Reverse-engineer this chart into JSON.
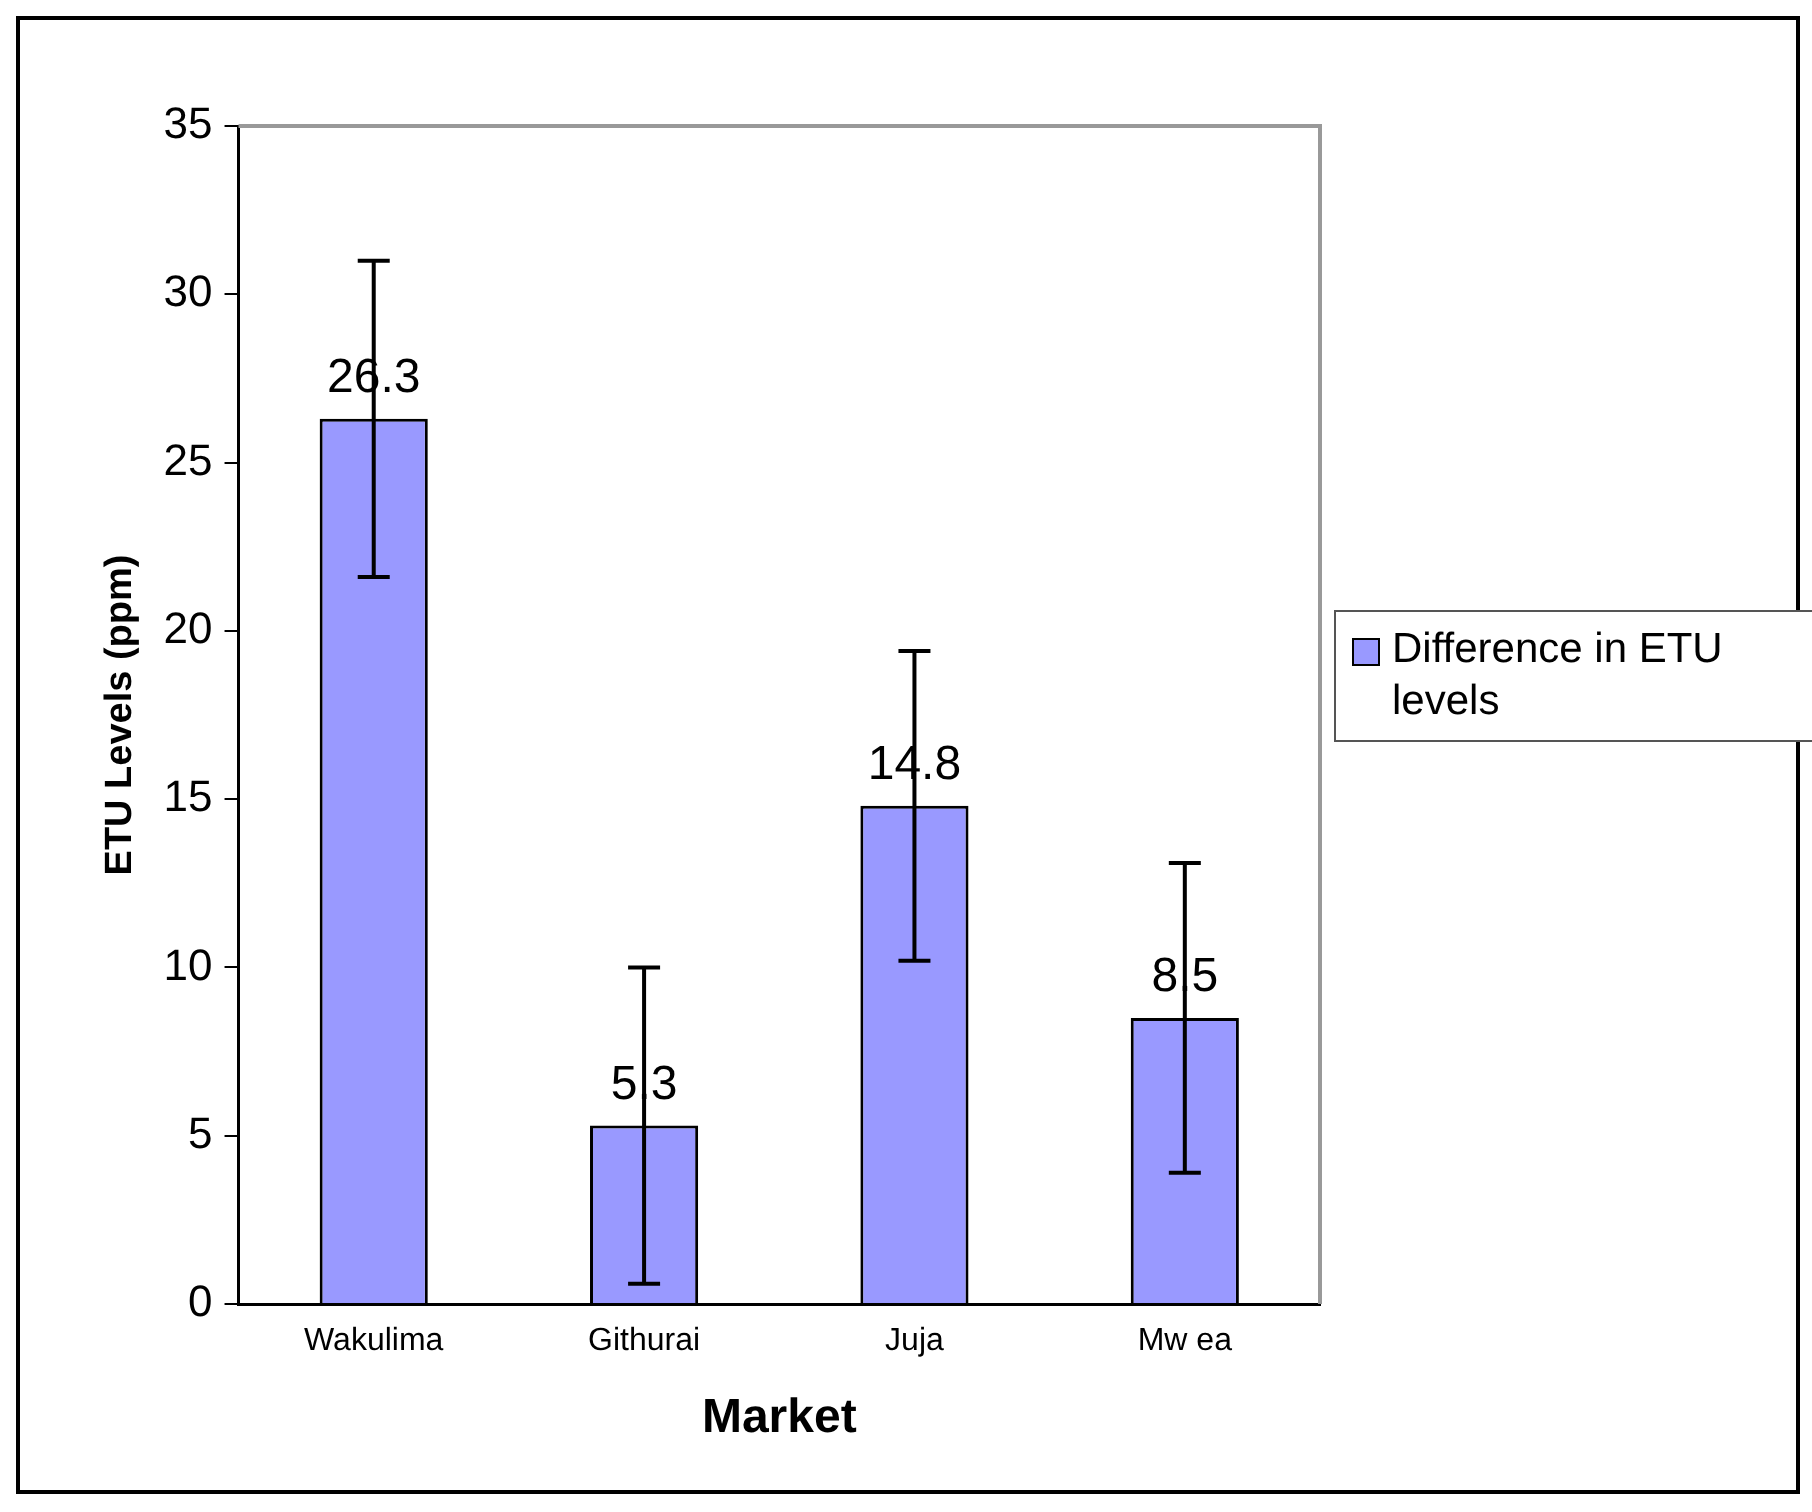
{
  "chart_data": {
    "type": "bar",
    "xlabel": "Market",
    "ylabel": "ETU Levels (ppm)",
    "categories": [
      "Wakulima",
      "Githurai",
      "Juja",
      "Mw ea"
    ],
    "series": [
      {
        "name": "Difference in ETU levels",
        "color": "#9999ff",
        "values": [
          26.3,
          5.3,
          14.8,
          8.5
        ],
        "errors": [
          4.7,
          4.7,
          4.6,
          4.6
        ]
      }
    ],
    "ylim": [
      0,
      35
    ],
    "yticks": [
      0,
      5,
      10,
      15,
      20,
      25,
      30,
      35
    ],
    "grid": false,
    "legend": "right",
    "data_labels": true
  }
}
